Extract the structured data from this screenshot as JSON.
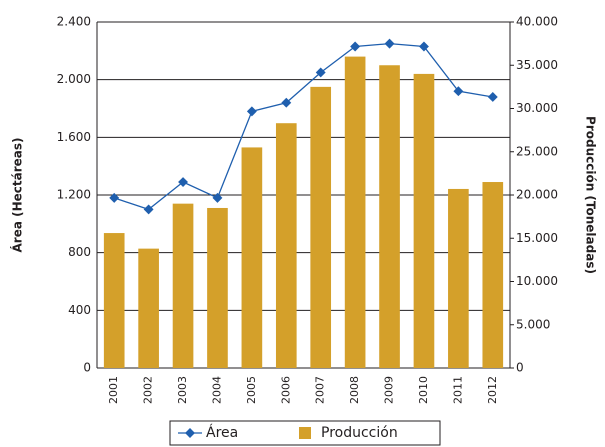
{
  "chart_data": {
    "type": "bar_line",
    "categories": [
      "2001",
      "2002",
      "2003",
      "2004",
      "2005",
      "2006",
      "2007",
      "2008",
      "2009",
      "2010",
      "2011",
      "2012"
    ],
    "ylabel": "Área (Hectáreas)",
    "y2label": "Producción (Toneladas)",
    "ylim": [
      0,
      2400
    ],
    "yticks": [
      0,
      {
        "value": 400,
        "label": "400"
      },
      {
        "value": 800,
        "label": "800"
      },
      {
        "value": 1200,
        "label": "1.200"
      },
      {
        "value": 1600,
        "label": "1.600"
      },
      {
        "value": 2000,
        "label": "2.000"
      },
      {
        "value": 2400,
        "label": "2.400"
      }
    ],
    "y2lim": [
      0,
      40000
    ],
    "y2ticks": [
      0,
      {
        "value": 5000,
        "label": "5.000"
      },
      {
        "value": 10000,
        "label": "10.000"
      },
      {
        "value": 15000,
        "label": "15.000"
      },
      {
        "value": 20000,
        "label": "20.000"
      },
      {
        "value": 25000,
        "label": "25.000"
      },
      {
        "value": 30000,
        "label": "30.000"
      },
      {
        "value": 35000,
        "label": "35.000"
      },
      {
        "value": 40000,
        "label": "40.000"
      }
    ],
    "grid": true,
    "series": [
      {
        "name": "Área",
        "kind": "line",
        "color": "#1f5fae",
        "values": [
          1180,
          1100,
          1290,
          1180,
          1780,
          1840,
          2050,
          2230,
          2250,
          2230,
          1920,
          1880
        ]
      },
      {
        "name": "Producción",
        "kind": "bar",
        "axis": "y2",
        "color": "#d4a02a",
        "values": [
          15600,
          13800,
          19000,
          18500,
          25500,
          28300,
          32500,
          36000,
          35000,
          34000,
          20700,
          21500
        ]
      }
    ]
  }
}
